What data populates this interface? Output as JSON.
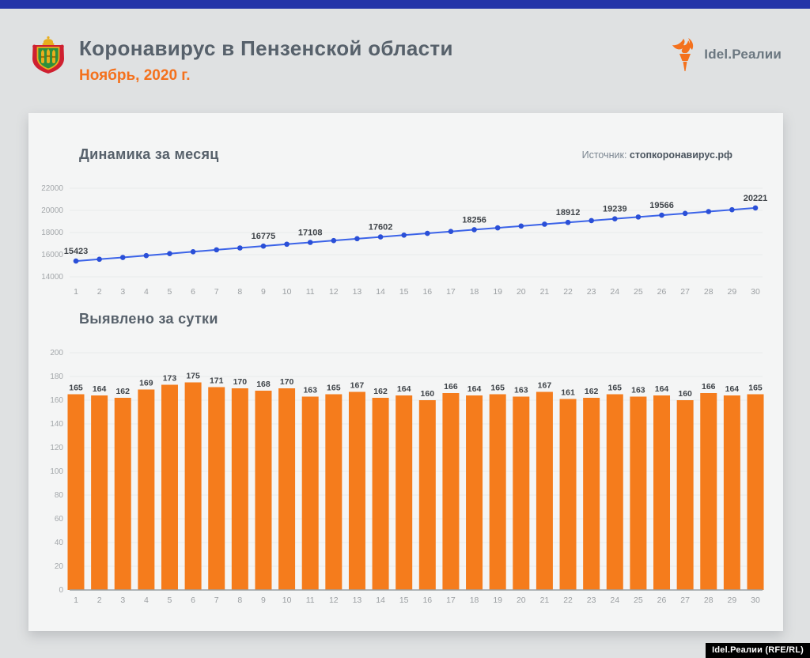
{
  "header": {
    "title": "Коронавирус в Пензенской области",
    "subtitle": "Ноябрь, 2020 г.",
    "brand": "Idel.Реалии"
  },
  "source": {
    "label": "Источник:",
    "value": "стопкоронавирус.рф"
  },
  "footer": {
    "credit": "Idel.Реалии (RFE/RL)"
  },
  "colors": {
    "accent_bar": "#2434a8",
    "background": "#dfe1e2",
    "card": "#f4f5f5",
    "title_text": "#57616b",
    "orange_accent": "#f4711d",
    "line": "#3b63e8",
    "dot": "#2a4fd7",
    "bar": "#f57c1c",
    "grid": "#e9eaea",
    "axis_line": "#9aa0a3",
    "axis_text": "#a3a7aa",
    "value_label": "#3f4449"
  },
  "chart_data": [
    {
      "type": "line",
      "title": "Динамика за месяц",
      "x": [
        1,
        2,
        3,
        4,
        5,
        6,
        7,
        8,
        9,
        10,
        11,
        12,
        13,
        14,
        15,
        16,
        17,
        18,
        19,
        20,
        21,
        22,
        23,
        24,
        25,
        26,
        27,
        28,
        29,
        30
      ],
      "values": [
        15423,
        15587,
        15749,
        15918,
        16091,
        16266,
        16437,
        16607,
        16775,
        16945,
        17108,
        17273,
        17440,
        17602,
        17766,
        17926,
        18092,
        18256,
        18421,
        18584,
        18751,
        18912,
        19074,
        19239,
        19402,
        19566,
        19726,
        19892,
        20056,
        20221
      ],
      "labeled_days": [
        1,
        9,
        11,
        14,
        18,
        22,
        24,
        26,
        30
      ],
      "xlabel": "",
      "ylabel": "",
      "ylim": [
        14000,
        22000
      ],
      "yticks": [
        14000,
        16000,
        18000,
        20000,
        22000
      ],
      "grid": true,
      "legend": "none"
    },
    {
      "type": "bar",
      "title": "Выявлено за сутки",
      "categories": [
        1,
        2,
        3,
        4,
        5,
        6,
        7,
        8,
        9,
        10,
        11,
        12,
        13,
        14,
        15,
        16,
        17,
        18,
        19,
        20,
        21,
        22,
        23,
        24,
        25,
        26,
        27,
        28,
        29,
        30
      ],
      "values": [
        165,
        164,
        162,
        169,
        173,
        175,
        171,
        170,
        168,
        170,
        163,
        165,
        167,
        162,
        164,
        160,
        166,
        164,
        165,
        163,
        167,
        161,
        162,
        165,
        163,
        164,
        160,
        166,
        164,
        165
      ],
      "xlabel": "",
      "ylabel": "",
      "ylim": [
        0,
        200
      ],
      "yticks": [
        0,
        20,
        40,
        60,
        80,
        100,
        120,
        140,
        160,
        180,
        200
      ],
      "grid": true,
      "data_labels": true,
      "legend": "none"
    }
  ]
}
